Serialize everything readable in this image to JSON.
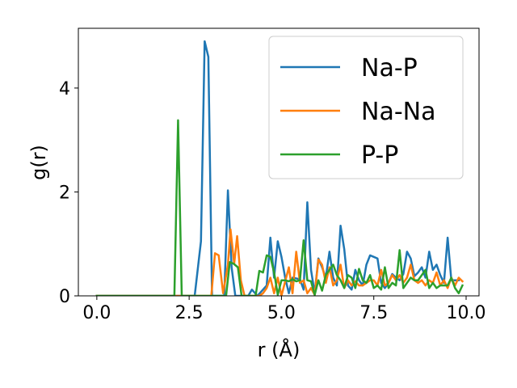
{
  "chart_data": {
    "type": "line",
    "xlabel": "r (Å)",
    "ylabel": "g(r)",
    "xlim": [
      -0.5,
      10.35
    ],
    "ylim": [
      0,
      5.15
    ],
    "xticks": [
      0.0,
      2.5,
      5.0,
      7.5,
      10.0
    ],
    "xtick_labels": [
      "0.0",
      "2.5",
      "5.0",
      "7.5",
      "10.0"
    ],
    "yticks": [
      0,
      2,
      4
    ],
    "ytick_labels": [
      "0",
      "2",
      "4"
    ],
    "grid": false,
    "legend_position": "top-right",
    "series": [
      {
        "name": "Na-P",
        "color": "#1f77b4",
        "points": [
          [
            0.0,
            0
          ],
          [
            2.65,
            0
          ],
          [
            2.82,
            1.05
          ],
          [
            2.92,
            4.9
          ],
          [
            3.02,
            4.6
          ],
          [
            3.12,
            0
          ],
          [
            3.45,
            0
          ],
          [
            3.55,
            2.03
          ],
          [
            3.65,
            0.55
          ],
          [
            3.75,
            0
          ],
          [
            4.1,
            0
          ],
          [
            4.2,
            0.12
          ],
          [
            4.35,
            0
          ],
          [
            4.6,
            0.2
          ],
          [
            4.7,
            1.12
          ],
          [
            4.8,
            0.35
          ],
          [
            4.9,
            1.05
          ],
          [
            5.0,
            0.75
          ],
          [
            5.1,
            0.35
          ],
          [
            5.2,
            0.05
          ],
          [
            5.3,
            0.35
          ],
          [
            5.5,
            0.32
          ],
          [
            5.6,
            0.12
          ],
          [
            5.7,
            1.8
          ],
          [
            5.8,
            0.5
          ],
          [
            5.9,
            0.05
          ],
          [
            6.0,
            0.72
          ],
          [
            6.1,
            0.55
          ],
          [
            6.2,
            0.35
          ],
          [
            6.3,
            0.85
          ],
          [
            6.4,
            0.35
          ],
          [
            6.5,
            0.2
          ],
          [
            6.6,
            1.35
          ],
          [
            6.7,
            0.9
          ],
          [
            6.8,
            0.2
          ],
          [
            6.9,
            0.12
          ],
          [
            7.0,
            0.5
          ],
          [
            7.1,
            0.3
          ],
          [
            7.2,
            0.2
          ],
          [
            7.3,
            0.6
          ],
          [
            7.4,
            0.78
          ],
          [
            7.5,
            0.75
          ],
          [
            7.6,
            0.72
          ],
          [
            7.7,
            0.25
          ],
          [
            7.8,
            0.15
          ],
          [
            7.9,
            0.25
          ],
          [
            8.0,
            0.42
          ],
          [
            8.1,
            0.35
          ],
          [
            8.2,
            0.3
          ],
          [
            8.3,
            0.42
          ],
          [
            8.4,
            0.85
          ],
          [
            8.5,
            0.72
          ],
          [
            8.6,
            0.38
          ],
          [
            8.7,
            0.45
          ],
          [
            8.8,
            0.55
          ],
          [
            8.9,
            0.35
          ],
          [
            9.0,
            0.85
          ],
          [
            9.1,
            0.5
          ],
          [
            9.2,
            0.6
          ],
          [
            9.3,
            0.4
          ],
          [
            9.4,
            0.25
          ],
          [
            9.5,
            1.12
          ],
          [
            9.6,
            0.3
          ],
          [
            9.7,
            0.3
          ],
          [
            9.8,
            0.3
          ]
        ]
      },
      {
        "name": "Na-Na",
        "color": "#ff7f0e",
        "points": [
          [
            0.0,
            0
          ],
          [
            3.1,
            0
          ],
          [
            3.2,
            0.82
          ],
          [
            3.3,
            0.78
          ],
          [
            3.42,
            0.05
          ],
          [
            3.55,
            0.6
          ],
          [
            3.62,
            1.28
          ],
          [
            3.72,
            0.62
          ],
          [
            3.8,
            1.15
          ],
          [
            3.9,
            0.3
          ],
          [
            4.0,
            0
          ],
          [
            4.4,
            0
          ],
          [
            4.5,
            0.05
          ],
          [
            4.6,
            0.15
          ],
          [
            4.7,
            0.35
          ],
          [
            4.8,
            0.05
          ],
          [
            4.9,
            0.35
          ],
          [
            5.0,
            0
          ],
          [
            5.2,
            0.55
          ],
          [
            5.3,
            0.05
          ],
          [
            5.4,
            0.85
          ],
          [
            5.5,
            0.25
          ],
          [
            5.6,
            0.3
          ],
          [
            5.7,
            0.05
          ],
          [
            5.8,
            0.15
          ],
          [
            5.9,
            0.02
          ],
          [
            6.0,
            0.7
          ],
          [
            6.1,
            0.6
          ],
          [
            6.2,
            0.25
          ],
          [
            6.3,
            0.55
          ],
          [
            6.4,
            0.2
          ],
          [
            6.5,
            0.3
          ],
          [
            6.6,
            0.6
          ],
          [
            6.7,
            0.15
          ],
          [
            6.8,
            0.3
          ],
          [
            6.9,
            0.2
          ],
          [
            7.0,
            0.28
          ],
          [
            7.1,
            0.2
          ],
          [
            7.2,
            0.2
          ],
          [
            7.3,
            0.25
          ],
          [
            7.4,
            0.3
          ],
          [
            7.5,
            0.3
          ],
          [
            7.6,
            0.2
          ],
          [
            7.7,
            0.5
          ],
          [
            7.8,
            0.2
          ],
          [
            7.9,
            0.25
          ],
          [
            8.0,
            0.4
          ],
          [
            8.1,
            0.3
          ],
          [
            8.2,
            0.4
          ],
          [
            8.3,
            0.25
          ],
          [
            8.4,
            0.35
          ],
          [
            8.5,
            0.6
          ],
          [
            8.6,
            0.3
          ],
          [
            8.7,
            0.25
          ],
          [
            8.8,
            0.3
          ],
          [
            8.9,
            0.2
          ],
          [
            9.0,
            0.3
          ],
          [
            9.1,
            0.25
          ],
          [
            9.2,
            0.45
          ],
          [
            9.3,
            0.2
          ],
          [
            9.4,
            0.3
          ],
          [
            9.5,
            0.15
          ],
          [
            9.6,
            0.35
          ],
          [
            9.7,
            0.2
          ],
          [
            9.8,
            0.35
          ],
          [
            9.9,
            0.28
          ]
        ]
      },
      {
        "name": "P-P",
        "color": "#2ca02c",
        "points": [
          [
            0.0,
            0
          ],
          [
            2.1,
            0
          ],
          [
            2.2,
            3.38
          ],
          [
            2.3,
            0
          ],
          [
            3.5,
            0
          ],
          [
            3.6,
            0.65
          ],
          [
            3.7,
            0.62
          ],
          [
            3.82,
            0.55
          ],
          [
            3.92,
            0
          ],
          [
            4.3,
            0
          ],
          [
            4.4,
            0.48
          ],
          [
            4.5,
            0.45
          ],
          [
            4.6,
            0.78
          ],
          [
            4.7,
            0.75
          ],
          [
            4.8,
            0.45
          ],
          [
            4.9,
            0.02
          ],
          [
            5.0,
            0.3
          ],
          [
            5.1,
            0.3
          ],
          [
            5.2,
            0.28
          ],
          [
            5.3,
            0.32
          ],
          [
            5.4,
            0.28
          ],
          [
            5.5,
            0.3
          ],
          [
            5.6,
            1.07
          ],
          [
            5.7,
            0.3
          ],
          [
            5.8,
            0.28
          ],
          [
            5.9,
            0.02
          ],
          [
            6.0,
            0.3
          ],
          [
            6.1,
            0.1
          ],
          [
            6.2,
            0.4
          ],
          [
            6.3,
            0.5
          ],
          [
            6.4,
            0.6
          ],
          [
            6.5,
            0.4
          ],
          [
            6.6,
            0.3
          ],
          [
            6.7,
            0.15
          ],
          [
            6.8,
            0.4
          ],
          [
            6.9,
            0.35
          ],
          [
            7.0,
            0.15
          ],
          [
            7.1,
            0.52
          ],
          [
            7.2,
            0.3
          ],
          [
            7.3,
            0.25
          ],
          [
            7.4,
            0.4
          ],
          [
            7.5,
            0.15
          ],
          [
            7.6,
            0.2
          ],
          [
            7.7,
            0.12
          ],
          [
            7.8,
            0.55
          ],
          [
            7.9,
            0.15
          ],
          [
            8.0,
            0.25
          ],
          [
            8.1,
            0.2
          ],
          [
            8.2,
            0.88
          ],
          [
            8.3,
            0.15
          ],
          [
            8.4,
            0.25
          ],
          [
            8.5,
            0.35
          ],
          [
            8.6,
            0.3
          ],
          [
            8.7,
            0.3
          ],
          [
            8.8,
            0.4
          ],
          [
            8.9,
            0.5
          ],
          [
            9.0,
            0.15
          ],
          [
            9.1,
            0.25
          ],
          [
            9.2,
            0.15
          ],
          [
            9.3,
            0.2
          ],
          [
            9.4,
            0.2
          ],
          [
            9.5,
            0.2
          ],
          [
            9.6,
            0.35
          ],
          [
            9.7,
            0.15
          ],
          [
            9.8,
            0.05
          ],
          [
            9.9,
            0.2
          ]
        ]
      }
    ]
  }
}
